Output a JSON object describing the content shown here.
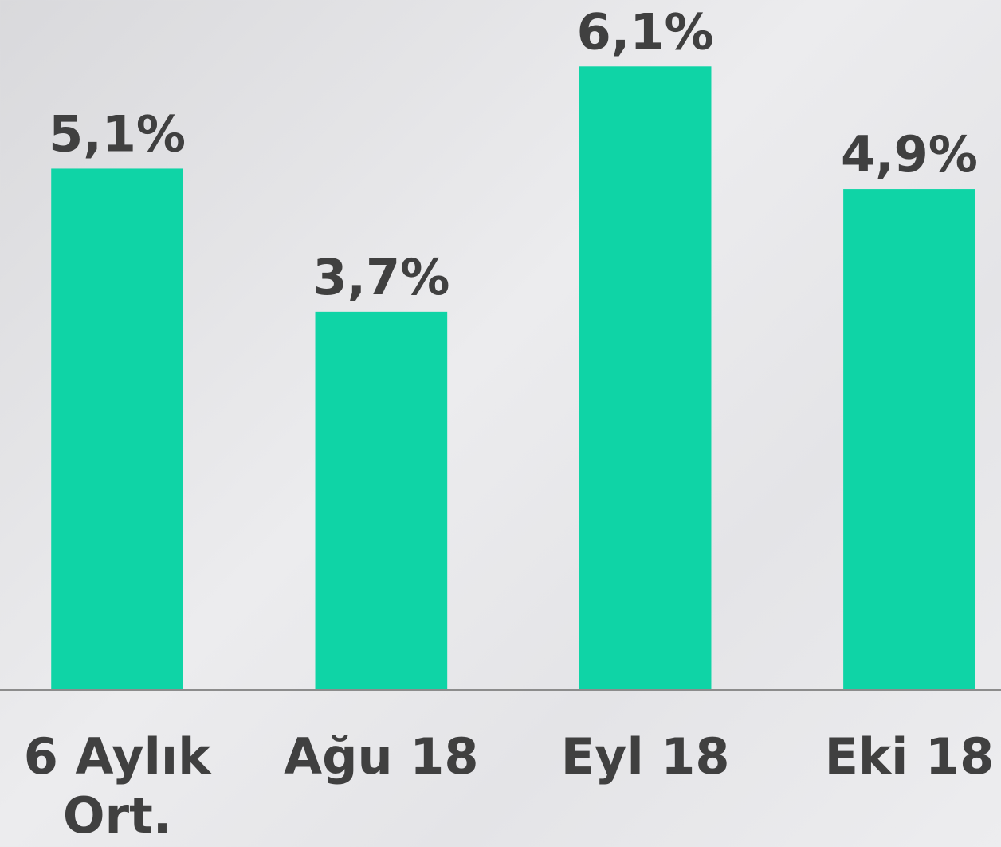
{
  "chart_data": {
    "type": "bar",
    "categories": [
      "6 Aylık Ort.",
      "Ağu 18",
      "Eyl 18",
      "Eki 18"
    ],
    "values": [
      5.1,
      3.7,
      6.1,
      4.9
    ],
    "value_labels": [
      "5,1%",
      "3,7%",
      "6,1%",
      "4,9%"
    ],
    "color": "#0fd4a6",
    "ylim": [
      0,
      6.75
    ]
  }
}
